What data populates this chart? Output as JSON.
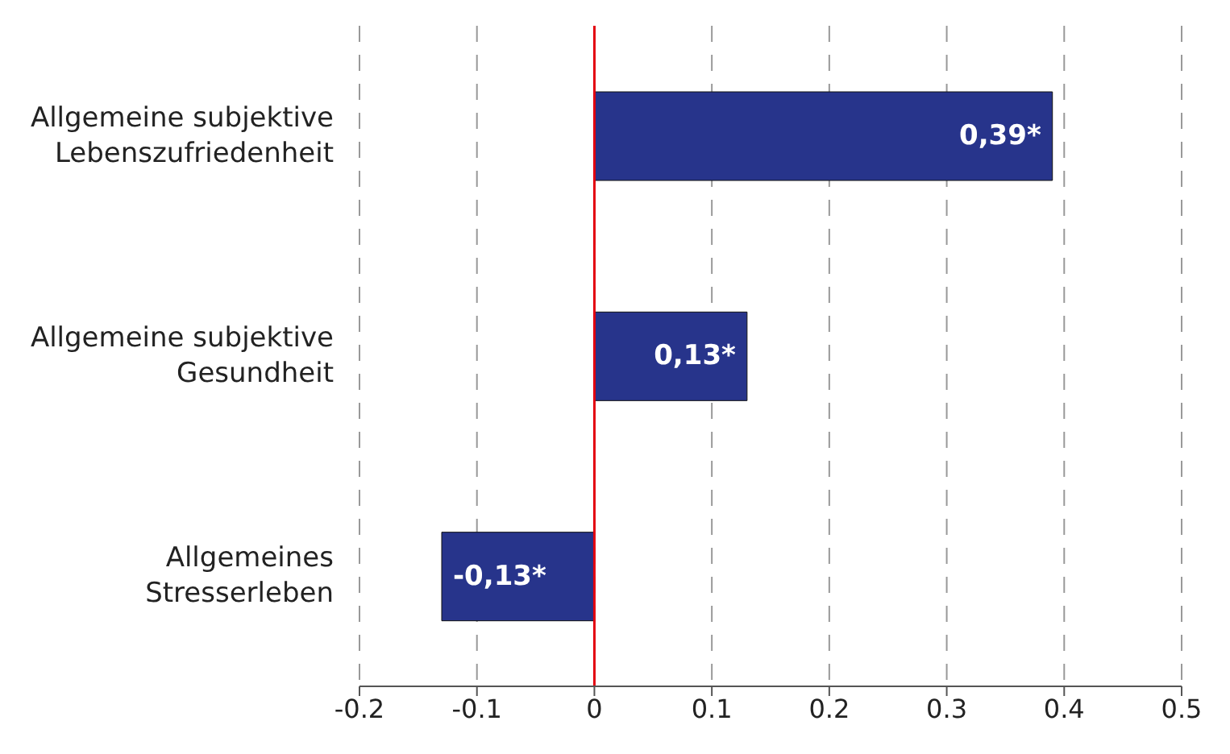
{
  "chart_data": {
    "type": "bar",
    "orientation": "horizontal",
    "categories": [
      "Allgemeine subjektive Lebenszufriedenheit",
      "Allgemeine subjektive Gesundheit",
      "Allgemeines Stresserleben"
    ],
    "values": [
      0.39,
      0.13,
      -0.13
    ],
    "color": "#27348b",
    "value_labels": [
      "0,39*",
      "0,13*",
      "-0,13*"
    ],
    "xlim": [
      -0.2,
      0.5
    ],
    "xticks": [
      -0.2,
      -0.1,
      0,
      0.1,
      0.2,
      0.3,
      0.4,
      0.5
    ],
    "grid": "x",
    "ref_lines": [
      {
        "axis": "x",
        "value": 0,
        "color": "#e3000f",
        "line_style": "solid"
      }
    ]
  }
}
